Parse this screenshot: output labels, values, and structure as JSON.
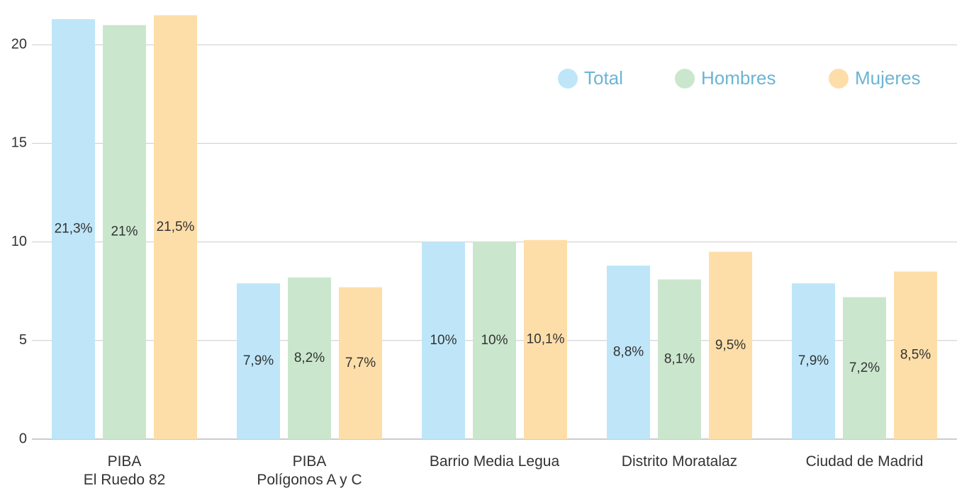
{
  "chart_data": {
    "type": "bar",
    "categories": [
      "PIBA\nEl Ruedo 82",
      "PIBA\nPolígonos A y C",
      "Barrio Media Legua",
      "Distrito Moratalaz",
      "Ciudad de Madrid"
    ],
    "series": [
      {
        "name": "Total",
        "color": "#bee6f8",
        "values": [
          21.3,
          7.9,
          10,
          8.8,
          7.9
        ],
        "value_labels": [
          "21,3%",
          "7,9%",
          "10%",
          "8,8%",
          "7,9%"
        ]
      },
      {
        "name": "Hombres",
        "color": "#cae7cd",
        "values": [
          21,
          8.2,
          10,
          8.1,
          7.2
        ],
        "value_labels": [
          "21%",
          "8,2%",
          "10%",
          "8,1%",
          "7,2%"
        ]
      },
      {
        "name": "Mujeres",
        "color": "#fddea9",
        "values": [
          21.5,
          7.7,
          10.1,
          9.5,
          8.5
        ],
        "value_labels": [
          "21,5%",
          "7,7%",
          "10,1%",
          "9,5%",
          "8,5%"
        ]
      }
    ],
    "ylim": [
      0,
      22.2
    ],
    "yticks": [
      0,
      5,
      10,
      15,
      20
    ],
    "grid": true,
    "legend": "top-right"
  }
}
